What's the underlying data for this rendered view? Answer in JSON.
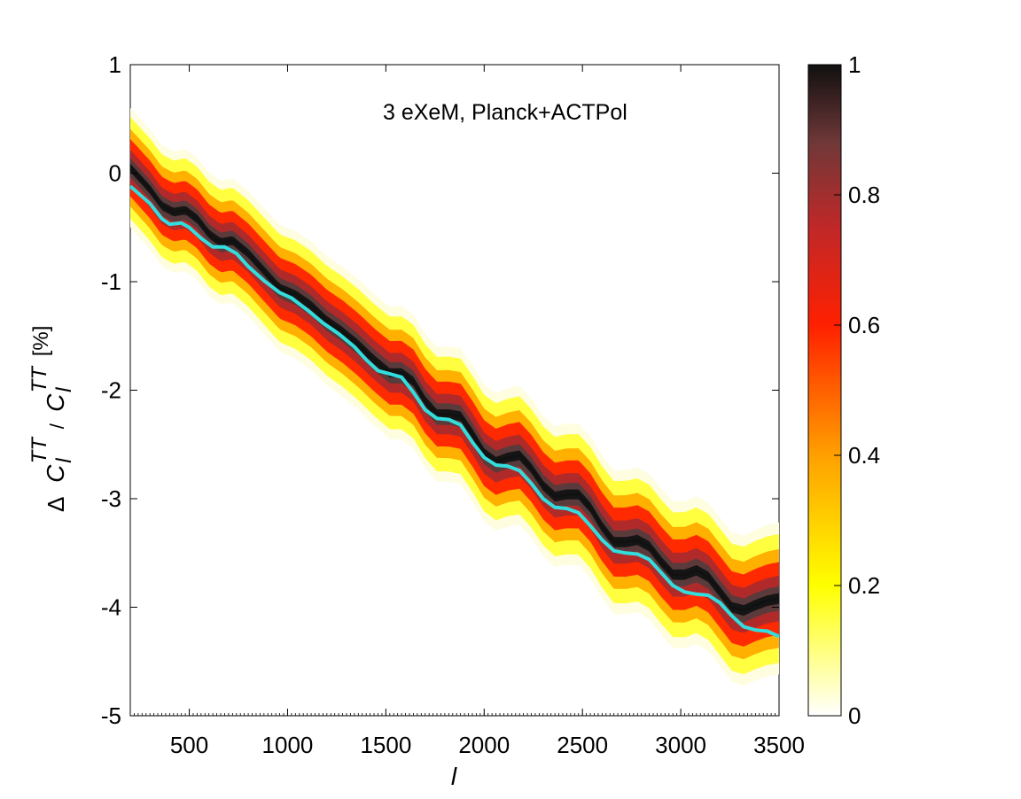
{
  "chart_data": {
    "type": "line",
    "title": "",
    "annotation": "3 eXeM, Planck+ACTPol",
    "xlabel": "l",
    "ylabel": {
      "delta": "Δ",
      "c1": "C",
      "sup1": "TT",
      "sub1": "l",
      "slash": "/",
      "c2": "C",
      "sup2": "TT",
      "sub2": "l",
      "unit": "[%]"
    },
    "xlim": [
      200,
      3500
    ],
    "ylim": [
      -5,
      1
    ],
    "xticks": [
      500,
      1000,
      1500,
      2000,
      2500,
      3000,
      3500
    ],
    "yticks": [
      1,
      0,
      -1,
      -2,
      -3,
      -4,
      -5
    ],
    "grid": false,
    "series": [
      {
        "name": "best fit (cyan)",
        "color": "#33dddd",
        "x": [
          200,
          300,
          360,
          400,
          460,
          500,
          560,
          620,
          680,
          740,
          800,
          880,
          960,
          1020,
          1100,
          1180,
          1260,
          1340,
          1400,
          1460,
          1520,
          1580,
          1640,
          1700,
          1760,
          1820,
          1880,
          1940,
          2000,
          2060,
          2120,
          2180,
          2240,
          2300,
          2360,
          2420,
          2480,
          2540,
          2600,
          2660,
          2720,
          2780,
          2840,
          2900,
          2960,
          3020,
          3080,
          3140,
          3200,
          3260,
          3320,
          3380,
          3440,
          3500
        ],
        "y": [
          -0.12,
          -0.28,
          -0.42,
          -0.47,
          -0.46,
          -0.5,
          -0.6,
          -0.68,
          -0.68,
          -0.74,
          -0.86,
          -0.99,
          -1.1,
          -1.15,
          -1.26,
          -1.38,
          -1.48,
          -1.6,
          -1.72,
          -1.82,
          -1.85,
          -1.88,
          -2.02,
          -2.18,
          -2.26,
          -2.27,
          -2.32,
          -2.48,
          -2.62,
          -2.69,
          -2.7,
          -2.74,
          -2.86,
          -3.0,
          -3.08,
          -3.09,
          -3.13,
          -3.25,
          -3.38,
          -3.48,
          -3.5,
          -3.51,
          -3.56,
          -3.68,
          -3.8,
          -3.86,
          -3.88,
          -3.89,
          -3.96,
          -4.08,
          -4.18,
          -4.21,
          -4.22,
          -4.27
        ]
      },
      {
        "name": "highest-probability ridge (black)",
        "color": "#111111",
        "x": [
          200,
          300,
          360,
          420,
          480,
          540,
          600,
          660,
          720,
          800,
          880,
          960,
          1040,
          1120,
          1200,
          1280,
          1360,
          1440,
          1520,
          1580,
          1640,
          1700,
          1760,
          1820,
          1880,
          1940,
          2000,
          2060,
          2120,
          2180,
          2240,
          2300,
          2360,
          2420,
          2480,
          2540,
          2600,
          2660,
          2720,
          2780,
          2840,
          2900,
          2960,
          3020,
          3080,
          3140,
          3200,
          3260,
          3320,
          3380,
          3440,
          3500
        ],
        "y": [
          0.05,
          -0.15,
          -0.3,
          -0.36,
          -0.34,
          -0.42,
          -0.56,
          -0.64,
          -0.62,
          -0.74,
          -0.9,
          -1.06,
          -1.12,
          -1.22,
          -1.36,
          -1.46,
          -1.58,
          -1.72,
          -1.84,
          -1.84,
          -1.92,
          -2.1,
          -2.22,
          -2.22,
          -2.24,
          -2.4,
          -2.58,
          -2.66,
          -2.62,
          -2.6,
          -2.72,
          -2.88,
          -2.98,
          -2.96,
          -2.96,
          -3.08,
          -3.26,
          -3.4,
          -3.4,
          -3.38,
          -3.44,
          -3.58,
          -3.7,
          -3.7,
          -3.66,
          -3.72,
          -3.86,
          -4.0,
          -4.03,
          -3.98,
          -3.94,
          -3.92
        ]
      }
    ],
    "probability_band": {
      "description": "posterior density shading around the ridge; width widens with l",
      "x": [
        200,
        3500
      ],
      "half_width": [
        0.55,
        0.7
      ]
    },
    "colorbar": {
      "label": "",
      "range": [
        0,
        1
      ],
      "ticks": [
        1,
        0.8,
        0.6,
        0.4,
        0.2,
        0
      ],
      "tick_labels": [
        "1",
        "0.8",
        "0.6",
        "0.4",
        "0.2",
        "0"
      ],
      "colormap": [
        "#ffffff",
        "#ffff00",
        "#ffa000",
        "#ff2000",
        "#c02020",
        "#803838",
        "#101010"
      ]
    }
  }
}
